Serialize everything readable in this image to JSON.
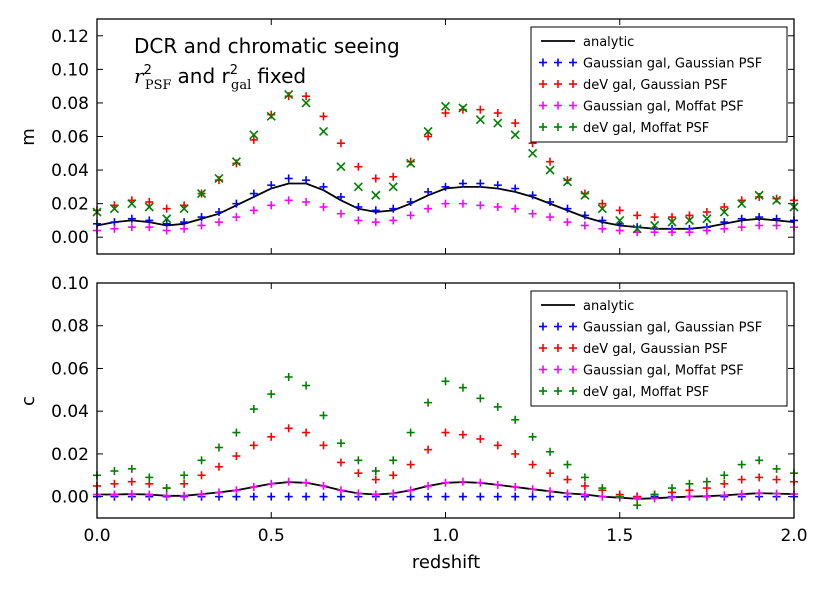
{
  "chart_data": [
    {
      "type": "scatter",
      "panel": "top",
      "ylabel": "m",
      "xlabel": "",
      "xlim": [
        0.0,
        2.0
      ],
      "ylim": [
        -0.01,
        0.13
      ],
      "yticks": [
        "0.00",
        "0.02",
        "0.04",
        "0.06",
        "0.08",
        "0.10",
        "0.12"
      ],
      "xticks": [],
      "annotation_line1": "DCR and chromatic seeing",
      "annotation_line2_pre": "r",
      "annotation_line2_sub1": "PSF",
      "annotation_line2_mid": "and r",
      "annotation_line2_sub2": "gal",
      "annotation_line2_post": "fixed",
      "annotation_sup": "2",
      "legend_position": "top-right",
      "legend": [
        "analytic",
        "Gaussian gal, Gaussian PSF",
        "deV gal, Gaussian PSF",
        "Gaussian gal, Moffat PSF",
        "deV gal, Moffat PSF"
      ],
      "x": [
        0.0,
        0.05,
        0.1,
        0.15,
        0.2,
        0.25,
        0.3,
        0.35,
        0.4,
        0.45,
        0.5,
        0.55,
        0.6,
        0.65,
        0.7,
        0.75,
        0.8,
        0.85,
        0.9,
        0.95,
        1.0,
        1.05,
        1.1,
        1.15,
        1.2,
        1.25,
        1.3,
        1.35,
        1.4,
        1.45,
        1.5,
        1.55,
        1.6,
        1.65,
        1.7,
        1.75,
        1.8,
        1.85,
        1.9,
        1.95,
        2.0
      ],
      "analytic_x": [
        0.0,
        0.05,
        0.1,
        0.15,
        0.2,
        0.25,
        0.3,
        0.35,
        0.4,
        0.45,
        0.5,
        0.55,
        0.6,
        0.65,
        0.7,
        0.75,
        0.8,
        0.85,
        0.9,
        0.95,
        1.0,
        1.05,
        1.1,
        1.15,
        1.2,
        1.25,
        1.3,
        1.35,
        1.4,
        1.45,
        1.5,
        1.55,
        1.6,
        1.65,
        1.7,
        1.75,
        1.8,
        1.85,
        1.9,
        1.95,
        2.0
      ],
      "analytic": [
        0.007,
        0.009,
        0.01,
        0.009,
        0.007,
        0.008,
        0.011,
        0.014,
        0.019,
        0.024,
        0.029,
        0.032,
        0.032,
        0.028,
        0.022,
        0.017,
        0.015,
        0.016,
        0.02,
        0.025,
        0.029,
        0.03,
        0.03,
        0.029,
        0.027,
        0.024,
        0.02,
        0.016,
        0.012,
        0.009,
        0.007,
        0.006,
        0.005,
        0.005,
        0.005,
        0.006,
        0.008,
        0.01,
        0.011,
        0.01,
        0.009
      ],
      "series": [
        {
          "name": "Gaussian gal, Gaussian PSF",
          "color": "#0000ff",
          "marker": "+",
          "values": [
            0.008,
            0.009,
            0.011,
            0.01,
            0.008,
            0.009,
            0.012,
            0.015,
            0.02,
            0.026,
            0.031,
            0.035,
            0.034,
            0.03,
            0.024,
            0.018,
            0.016,
            0.017,
            0.021,
            0.027,
            0.03,
            0.032,
            0.032,
            0.031,
            0.029,
            0.025,
            0.021,
            0.017,
            0.013,
            0.01,
            0.008,
            0.006,
            0.005,
            0.005,
            0.005,
            0.006,
            0.009,
            0.011,
            0.012,
            0.011,
            0.01
          ]
        },
        {
          "name": "deV gal, Gaussian PSF",
          "color": "#ff0000",
          "marker": "+",
          "values": [
            0.016,
            0.019,
            0.022,
            0.021,
            0.017,
            0.019,
            0.026,
            0.034,
            0.044,
            0.058,
            0.073,
            0.084,
            0.084,
            0.072,
            0.056,
            0.042,
            0.035,
            0.036,
            0.045,
            0.06,
            0.074,
            0.076,
            0.076,
            0.074,
            0.068,
            0.056,
            0.045,
            0.034,
            0.026,
            0.02,
            0.016,
            0.013,
            0.012,
            0.012,
            0.013,
            0.015,
            0.018,
            0.022,
            0.024,
            0.023,
            0.022
          ]
        },
        {
          "name": "Gaussian gal, Moffat PSF",
          "color": "#ff00ff",
          "marker": "+",
          "values": [
            0.004,
            0.005,
            0.006,
            0.006,
            0.004,
            0.005,
            0.007,
            0.009,
            0.012,
            0.016,
            0.019,
            0.022,
            0.021,
            0.018,
            0.014,
            0.01,
            0.009,
            0.01,
            0.013,
            0.017,
            0.02,
            0.02,
            0.019,
            0.018,
            0.017,
            0.014,
            0.012,
            0.009,
            0.007,
            0.005,
            0.004,
            0.003,
            0.003,
            0.003,
            0.003,
            0.004,
            0.005,
            0.006,
            0.007,
            0.007,
            0.006
          ]
        },
        {
          "name": "deV gal, Moffat PSF",
          "color": "#008000",
          "marker": "x",
          "values": [
            0.015,
            0.017,
            0.02,
            0.018,
            0.011,
            0.017,
            0.026,
            0.035,
            0.045,
            0.061,
            0.072,
            0.085,
            0.08,
            0.063,
            0.042,
            0.03,
            0.025,
            0.03,
            0.044,
            0.063,
            0.078,
            0.077,
            0.07,
            0.068,
            0.061,
            0.05,
            0.04,
            0.033,
            0.025,
            0.017,
            0.01,
            0.005,
            0.007,
            0.009,
            0.01,
            0.011,
            0.015,
            0.02,
            0.025,
            0.022,
            0.018
          ]
        }
      ]
    },
    {
      "type": "scatter",
      "panel": "bottom",
      "ylabel": "c",
      "xlabel": "redshift",
      "xlim": [
        0.0,
        2.0
      ],
      "ylim": [
        -0.01,
        0.1
      ],
      "yticks": [
        "0.00",
        "0.02",
        "0.04",
        "0.06",
        "0.08",
        "0.10"
      ],
      "xticks": [
        "0.0",
        "0.5",
        "1.0",
        "1.5",
        "2.0"
      ],
      "legend_position": "top-right",
      "legend": [
        "analytic",
        "Gaussian gal, Gaussian PSF",
        "deV gal, Gaussian PSF",
        "Gaussian gal, Moffat PSF",
        "deV gal, Moffat PSF"
      ],
      "x": [
        0.0,
        0.05,
        0.1,
        0.15,
        0.2,
        0.25,
        0.3,
        0.35,
        0.4,
        0.45,
        0.5,
        0.55,
        0.6,
        0.65,
        0.7,
        0.75,
        0.8,
        0.85,
        0.9,
        0.95,
        1.0,
        1.05,
        1.1,
        1.15,
        1.2,
        1.25,
        1.3,
        1.35,
        1.4,
        1.45,
        1.5,
        1.55,
        1.6,
        1.65,
        1.7,
        1.75,
        1.8,
        1.85,
        1.9,
        1.95,
        2.0
      ],
      "analytic_x": [
        0.0,
        0.05,
        0.1,
        0.15,
        0.2,
        0.25,
        0.3,
        0.35,
        0.4,
        0.45,
        0.5,
        0.55,
        0.6,
        0.65,
        0.7,
        0.75,
        0.8,
        0.85,
        0.9,
        0.95,
        1.0,
        1.05,
        1.1,
        1.15,
        1.2,
        1.25,
        1.3,
        1.35,
        1.4,
        1.45,
        1.5,
        1.55,
        1.6,
        1.65,
        1.7,
        1.75,
        1.8,
        1.85,
        1.9,
        1.95,
        2.0
      ],
      "analytic": [
        0.001,
        0.001,
        0.0012,
        0.001,
        0.0004,
        0.0004,
        0.0012,
        0.002,
        0.003,
        0.0045,
        0.006,
        0.0068,
        0.0065,
        0.005,
        0.003,
        0.0015,
        0.001,
        0.0015,
        0.003,
        0.005,
        0.0065,
        0.0068,
        0.0065,
        0.0055,
        0.0045,
        0.0035,
        0.0025,
        0.0015,
        0.001,
        0.0,
        -0.0005,
        -0.001,
        -0.0008,
        -0.0003,
        0.0,
        0.0002,
        0.0006,
        0.0012,
        0.0016,
        0.0014,
        0.0012
      ],
      "series": [
        {
          "name": "Gaussian gal, Gaussian PSF",
          "color": "#0000ff",
          "marker": "+",
          "values": [
            0.0,
            0.0,
            0.0,
            0.0,
            0.0,
            0.0,
            0.0,
            0.0,
            0.0,
            0.0,
            0.0,
            0.0,
            0.0,
            0.0,
            0.0,
            0.0,
            0.0,
            0.0,
            0.0,
            0.0,
            0.0,
            0.0,
            0.0,
            0.0,
            0.0,
            0.0,
            0.0,
            0.0,
            0.0,
            0.0,
            0.0,
            0.0,
            0.0,
            0.0,
            0.0,
            0.0,
            0.0,
            0.0,
            0.0,
            0.0,
            0.0
          ]
        },
        {
          "name": "deV gal, Gaussian PSF",
          "color": "#ff0000",
          "marker": "+",
          "values": [
            0.005,
            0.006,
            0.007,
            0.006,
            0.004,
            0.006,
            0.01,
            0.014,
            0.019,
            0.024,
            0.028,
            0.032,
            0.03,
            0.024,
            0.016,
            0.011,
            0.008,
            0.01,
            0.015,
            0.022,
            0.03,
            0.029,
            0.027,
            0.024,
            0.02,
            0.015,
            0.011,
            0.008,
            0.005,
            0.003,
            0.001,
            0.0,
            0.001,
            0.002,
            0.003,
            0.004,
            0.006,
            0.008,
            0.009,
            0.008,
            0.007
          ]
        },
        {
          "name": "Gaussian gal, Moffat PSF",
          "color": "#ff00ff",
          "marker": "+",
          "values": [
            0.001,
            0.001,
            0.0012,
            0.001,
            0.0004,
            0.0004,
            0.0012,
            0.002,
            0.003,
            0.0045,
            0.006,
            0.007,
            0.0065,
            0.005,
            0.003,
            0.0015,
            0.001,
            0.0015,
            0.003,
            0.005,
            0.0065,
            0.007,
            0.0065,
            0.0055,
            0.0045,
            0.0035,
            0.0025,
            0.0015,
            0.001,
            0.0,
            -0.0005,
            -0.001,
            -0.0008,
            -0.0003,
            0.0,
            0.0002,
            0.0006,
            0.0012,
            0.0016,
            0.0014,
            0.0012
          ]
        },
        {
          "name": "deV gal, Moffat PSF",
          "color": "#008000",
          "marker": "+",
          "values": [
            0.01,
            0.012,
            0.013,
            0.009,
            0.004,
            0.01,
            0.017,
            0.023,
            0.03,
            0.041,
            0.048,
            0.056,
            0.052,
            0.038,
            0.025,
            0.017,
            0.012,
            0.017,
            0.03,
            0.044,
            0.054,
            0.051,
            0.046,
            0.042,
            0.036,
            0.028,
            0.021,
            0.015,
            0.009,
            0.004,
            0.0,
            -0.004,
            0.001,
            0.004,
            0.006,
            0.007,
            0.01,
            0.015,
            0.017,
            0.013,
            0.011
          ]
        }
      ]
    }
  ]
}
